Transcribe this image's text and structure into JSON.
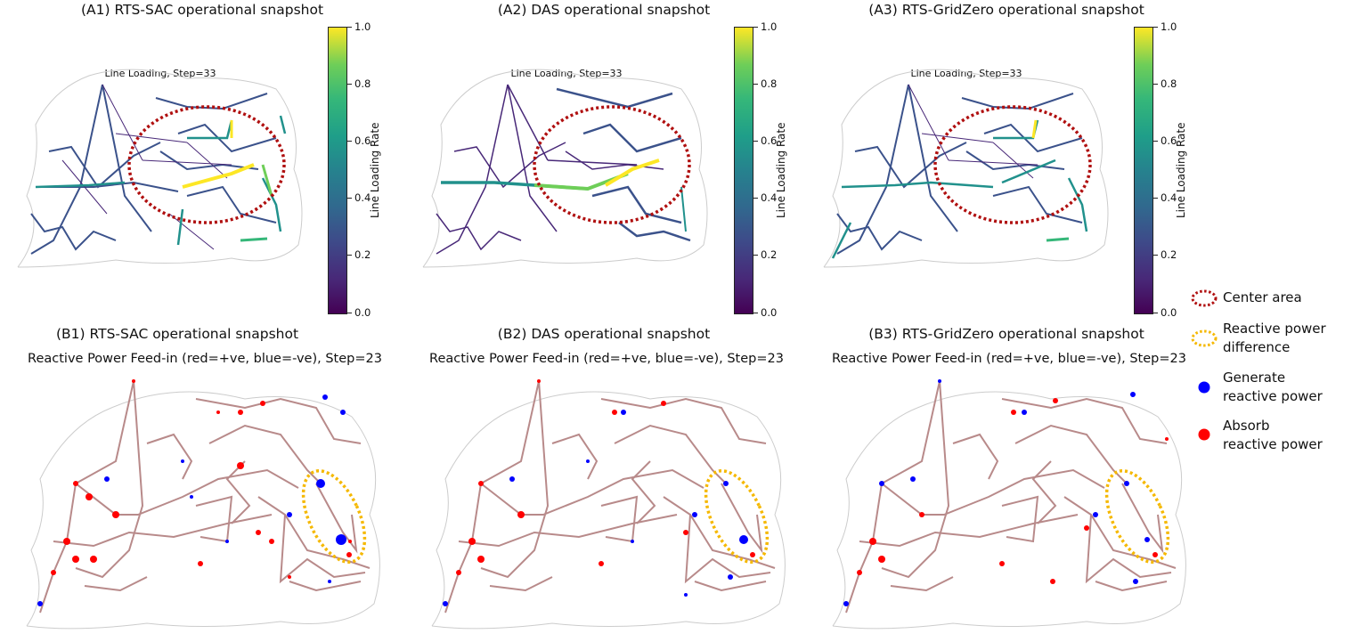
{
  "panels_top": [
    {
      "title": "(A1) RTS-SAC operational snapshot",
      "inner": "Line Loading, Step=33"
    },
    {
      "title": "(A2) DAS operational snapshot",
      "inner": "Line Loading, Step=33"
    },
    {
      "title": "(A3) RTS-GridZero operational snapshot",
      "inner": "Line Loading, Step=33"
    }
  ],
  "panels_bottom": [
    {
      "title": "(B1) RTS-SAC operational snapshot",
      "subtitle": "Reactive Power Feed-in (red=+ve, blue=-ve), Step=23"
    },
    {
      "title": "(B2) DAS operational snapshot",
      "subtitle": "Reactive Power Feed-in (red=+ve, blue=-ve), Step=23"
    },
    {
      "title": "(B3) RTS-GridZero operational snapshot",
      "subtitle": "Reactive Power Feed-in (red=+ve, blue=-ve), Step=23"
    }
  ],
  "colorbar": {
    "label": "Line Loading Rate",
    "ticks": [
      "0.0",
      "0.2",
      "0.4",
      "0.6",
      "0.8",
      "1.0"
    ],
    "colormap": "viridis"
  },
  "legend": {
    "center_area": "Center area",
    "reactive_diff_line1": "Reactive power",
    "reactive_diff_line2": "difference",
    "generate_line1": "Generate",
    "generate_line2": "reactive power",
    "absorb_line1": "Absorb",
    "absorb_line2": "reactive power"
  },
  "colors": {
    "center_area": "#b01010",
    "reactive_diff": "#f5b800",
    "generate": "#0000ff",
    "absorb": "#ff0000",
    "edge_bottom": "#b88a8a"
  }
}
